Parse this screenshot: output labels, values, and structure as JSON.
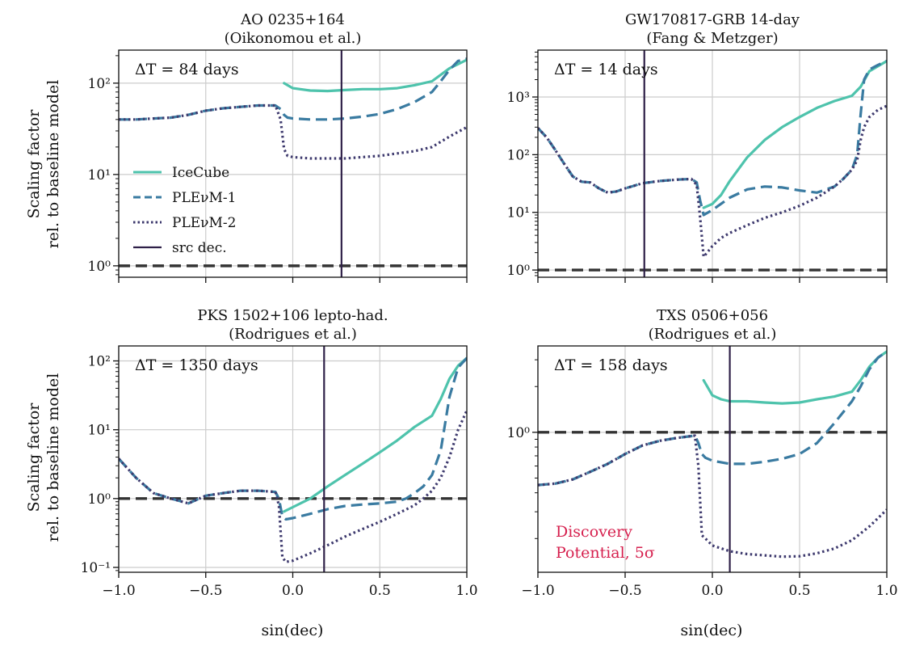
{
  "colors": {
    "icecube": "#4ec3ac",
    "plenum1": "#3a7ba1",
    "plenum2": "#3e3a6e",
    "src_dec": "#2f2048",
    "baseline": "#333333",
    "grid": "#cccccc",
    "annotation": "#d6204e"
  },
  "shared": {
    "ylabel_line1": "Scaling factor",
    "ylabel_line2": "rel. to baseline model",
    "xlabel": "sin(dec)",
    "x_ticks": [
      "−1.0",
      "−0.5",
      "0.0",
      "0.5",
      "1.0"
    ]
  },
  "legend": {
    "items": [
      {
        "label": "IceCube",
        "style": "solid",
        "color_key": "icecube"
      },
      {
        "label": "PLEνM-1",
        "style": "dashed",
        "color_key": "plenum1"
      },
      {
        "label": "PLEνM-2",
        "style": "dotted",
        "color_key": "plenum2"
      },
      {
        "label": "src dec.",
        "style": "vline",
        "color_key": "src_dec"
      }
    ]
  },
  "annotation": {
    "line1": "Discovery",
    "line2": "Potential, 5σ"
  },
  "chart_data": [
    {
      "type": "line",
      "title_line1": "AO 0235+164",
      "title_line2": "(Oikonomou et al.)",
      "delta_t": "ΔT = 84 days",
      "xlim": [
        -1,
        1
      ],
      "ylim": [
        0.75,
        230
      ],
      "yscale": "log",
      "y_ticks": [
        {
          "v": 1,
          "label": "10⁰"
        },
        {
          "v": 10,
          "label": "10¹"
        },
        {
          "v": 100,
          "label": "10²"
        }
      ],
      "src_dec": 0.28,
      "baseline": 1,
      "series": [
        {
          "name": "IceCube",
          "x": [
            -0.05,
            0.0,
            0.1,
            0.2,
            0.3,
            0.4,
            0.5,
            0.6,
            0.7,
            0.8,
            0.9,
            1.0
          ],
          "y": [
            100,
            88,
            83,
            82,
            84,
            86,
            86,
            88,
            95,
            105,
            145,
            180
          ]
        },
        {
          "name": "PLEνM-1",
          "x": [
            -1.0,
            -0.9,
            -0.8,
            -0.7,
            -0.6,
            -0.5,
            -0.4,
            -0.3,
            -0.2,
            -0.1,
            -0.07,
            -0.05,
            -0.03,
            0.0,
            0.1,
            0.2,
            0.3,
            0.4,
            0.5,
            0.6,
            0.7,
            0.8,
            0.85,
            0.9,
            0.95,
            1.0
          ],
          "y": [
            40,
            40,
            41,
            42,
            45,
            50,
            53,
            55,
            57,
            57,
            52,
            45,
            42,
            41,
            40,
            40,
            41,
            43,
            46,
            52,
            62,
            80,
            105,
            140,
            175,
            185
          ]
        },
        {
          "name": "PLEνM-2",
          "x": [
            -1.0,
            -0.9,
            -0.8,
            -0.7,
            -0.6,
            -0.5,
            -0.4,
            -0.3,
            -0.2,
            -0.1,
            -0.07,
            -0.05,
            -0.03,
            0.0,
            0.1,
            0.2,
            0.3,
            0.4,
            0.5,
            0.6,
            0.7,
            0.8,
            0.9,
            1.0
          ],
          "y": [
            40,
            40,
            41,
            42,
            45,
            50,
            53,
            55,
            57,
            57,
            40,
            19,
            16,
            15.5,
            15,
            15,
            15,
            15.5,
            16,
            17,
            18,
            20,
            26,
            33
          ]
        }
      ]
    },
    {
      "type": "line",
      "title_line1": "GW170817-GRB 14-day",
      "title_line2": "(Fang & Metzger)",
      "delta_t": "ΔT = 14 days",
      "xlim": [
        -1,
        1
      ],
      "ylim": [
        0.75,
        6500
      ],
      "yscale": "log",
      "y_ticks": [
        {
          "v": 1,
          "label": "10⁰"
        },
        {
          "v": 10,
          "label": "10¹"
        },
        {
          "v": 100,
          "label": "10²"
        },
        {
          "v": 1000,
          "label": "10³"
        }
      ],
      "src_dec": -0.39,
      "baseline": 1,
      "series": [
        {
          "name": "IceCube",
          "x": [
            -0.05,
            0.0,
            0.05,
            0.1,
            0.2,
            0.3,
            0.4,
            0.5,
            0.6,
            0.7,
            0.8,
            0.85,
            0.9,
            1.0
          ],
          "y": [
            12,
            14,
            20,
            35,
            90,
            180,
            300,
            450,
            650,
            850,
            1050,
            1500,
            2800,
            4200
          ]
        },
        {
          "name": "PLEνM-1",
          "x": [
            -1.0,
            -0.95,
            -0.9,
            -0.85,
            -0.8,
            -0.75,
            -0.7,
            -0.65,
            -0.6,
            -0.55,
            -0.5,
            -0.4,
            -0.3,
            -0.2,
            -0.12,
            -0.09,
            -0.07,
            -0.05,
            0.0,
            0.1,
            0.2,
            0.3,
            0.4,
            0.5,
            0.6,
            0.7,
            0.75,
            0.8,
            0.83,
            0.85,
            0.87,
            0.9,
            0.95,
            1.0
          ],
          "y": [
            290,
            200,
            120,
            70,
            42,
            34,
            33,
            26,
            22,
            23,
            26,
            32,
            35,
            37,
            38,
            33,
            16,
            9,
            11,
            18,
            25,
            28,
            27,
            24,
            22,
            28,
            38,
            55,
            100,
            500,
            2000,
            3000,
            3600,
            4200
          ]
        },
        {
          "name": "PLEνM-2",
          "x": [
            -1.0,
            -0.95,
            -0.9,
            -0.85,
            -0.8,
            -0.75,
            -0.7,
            -0.65,
            -0.6,
            -0.55,
            -0.5,
            -0.4,
            -0.3,
            -0.2,
            -0.12,
            -0.09,
            -0.07,
            -0.05,
            -0.03,
            0.0,
            0.05,
            0.1,
            0.2,
            0.3,
            0.4,
            0.5,
            0.6,
            0.7,
            0.75,
            0.8,
            0.83,
            0.85,
            0.87,
            0.9,
            0.95,
            1.0
          ],
          "y": [
            290,
            200,
            120,
            70,
            42,
            34,
            33,
            26,
            22,
            23,
            26,
            32,
            35,
            37,
            38,
            30,
            8,
            1.7,
            2.0,
            2.6,
            3.6,
            4.4,
            6,
            8,
            10,
            13,
            18,
            28,
            38,
            55,
            80,
            180,
            300,
            450,
            600,
            700
          ]
        }
      ]
    },
    {
      "type": "line",
      "title_line1": "PKS 1502+106 lepto-had.",
      "title_line2": "(Rodrigues et al.)",
      "delta_t": "ΔT = 1350 days",
      "xlim": [
        -1,
        1
      ],
      "ylim": [
        0.085,
        165
      ],
      "yscale": "log",
      "y_ticks": [
        {
          "v": 0.1,
          "label": "10⁻¹"
        },
        {
          "v": 1,
          "label": "10⁰"
        },
        {
          "v": 10,
          "label": "10¹"
        },
        {
          "v": 100,
          "label": "10²"
        }
      ],
      "src_dec": 0.18,
      "baseline": 1,
      "series": [
        {
          "name": "IceCube",
          "x": [
            -0.05,
            0.0,
            0.1,
            0.2,
            0.3,
            0.4,
            0.5,
            0.6,
            0.7,
            0.8,
            0.85,
            0.9,
            0.95,
            1.0
          ],
          "y": [
            0.65,
            0.75,
            1.0,
            1.5,
            2.2,
            3.2,
            4.7,
            7.0,
            11,
            16,
            28,
            55,
            85,
            110
          ]
        },
        {
          "name": "PLEνM-1",
          "x": [
            -1.0,
            -0.9,
            -0.8,
            -0.7,
            -0.6,
            -0.5,
            -0.4,
            -0.3,
            -0.2,
            -0.1,
            -0.08,
            -0.06,
            -0.04,
            0.0,
            0.1,
            0.2,
            0.3,
            0.4,
            0.5,
            0.6,
            0.65,
            0.7,
            0.75,
            0.8,
            0.85,
            0.9,
            0.95,
            1.0
          ],
          "y": [
            3.8,
            2.0,
            1.2,
            1.0,
            0.85,
            1.1,
            1.2,
            1.3,
            1.3,
            1.25,
            1.0,
            0.55,
            0.5,
            0.52,
            0.6,
            0.7,
            0.78,
            0.82,
            0.85,
            0.9,
            1.0,
            1.2,
            1.5,
            2.2,
            5,
            30,
            80,
            110
          ]
        },
        {
          "name": "PLEνM-2",
          "x": [
            -1.0,
            -0.9,
            -0.8,
            -0.7,
            -0.6,
            -0.5,
            -0.4,
            -0.3,
            -0.2,
            -0.1,
            -0.08,
            -0.06,
            -0.04,
            0.0,
            0.1,
            0.2,
            0.3,
            0.4,
            0.5,
            0.6,
            0.7,
            0.75,
            0.8,
            0.85,
            0.9,
            0.95,
            1.0
          ],
          "y": [
            3.8,
            2.0,
            1.2,
            1.0,
            0.85,
            1.1,
            1.2,
            1.3,
            1.3,
            1.25,
            0.8,
            0.14,
            0.12,
            0.125,
            0.16,
            0.21,
            0.28,
            0.36,
            0.46,
            0.6,
            0.8,
            1.0,
            1.3,
            2.0,
            4,
            10,
            19
          ]
        }
      ]
    },
    {
      "type": "line",
      "title_line1": "TXS 0506+056",
      "title_line2": "(Rodrigues et al.)",
      "delta_t": "ΔT = 158 days",
      "xlim": [
        -1,
        1
      ],
      "ylim": [
        0.12,
        3.7
      ],
      "yscale": "log",
      "y_ticks": [
        {
          "v": 1,
          "label": "10⁰"
        }
      ],
      "src_dec": 0.1,
      "baseline": 1,
      "series": [
        {
          "name": "IceCube",
          "x": [
            -0.05,
            0.0,
            0.05,
            0.1,
            0.2,
            0.3,
            0.4,
            0.5,
            0.6,
            0.7,
            0.8,
            0.85,
            0.9,
            0.95,
            1.0
          ],
          "y": [
            2.2,
            1.75,
            1.65,
            1.6,
            1.6,
            1.57,
            1.55,
            1.57,
            1.65,
            1.72,
            1.85,
            2.2,
            2.7,
            3.1,
            3.4
          ]
        },
        {
          "name": "PLEνM-1",
          "x": [
            -1.0,
            -0.9,
            -0.8,
            -0.7,
            -0.6,
            -0.5,
            -0.4,
            -0.3,
            -0.2,
            -0.1,
            -0.08,
            -0.06,
            -0.04,
            0.0,
            0.1,
            0.2,
            0.3,
            0.4,
            0.5,
            0.6,
            0.7,
            0.8,
            0.85,
            0.9,
            0.95,
            1.0
          ],
          "y": [
            0.45,
            0.46,
            0.49,
            0.55,
            0.62,
            0.72,
            0.82,
            0.88,
            0.92,
            0.95,
            0.85,
            0.72,
            0.68,
            0.65,
            0.62,
            0.62,
            0.64,
            0.67,
            0.72,
            0.85,
            1.15,
            1.6,
            2.0,
            2.6,
            3.1,
            3.4
          ]
        },
        {
          "name": "PLEνM-2",
          "x": [
            -1.0,
            -0.9,
            -0.8,
            -0.7,
            -0.6,
            -0.5,
            -0.4,
            -0.3,
            -0.2,
            -0.1,
            -0.08,
            -0.06,
            -0.04,
            0.0,
            0.1,
            0.2,
            0.3,
            0.4,
            0.5,
            0.6,
            0.7,
            0.8,
            0.9,
            1.0
          ],
          "y": [
            0.45,
            0.46,
            0.49,
            0.55,
            0.62,
            0.72,
            0.82,
            0.88,
            0.92,
            0.95,
            0.6,
            0.21,
            0.2,
            0.18,
            0.165,
            0.158,
            0.155,
            0.152,
            0.153,
            0.16,
            0.172,
            0.195,
            0.24,
            0.31
          ]
        }
      ]
    }
  ]
}
